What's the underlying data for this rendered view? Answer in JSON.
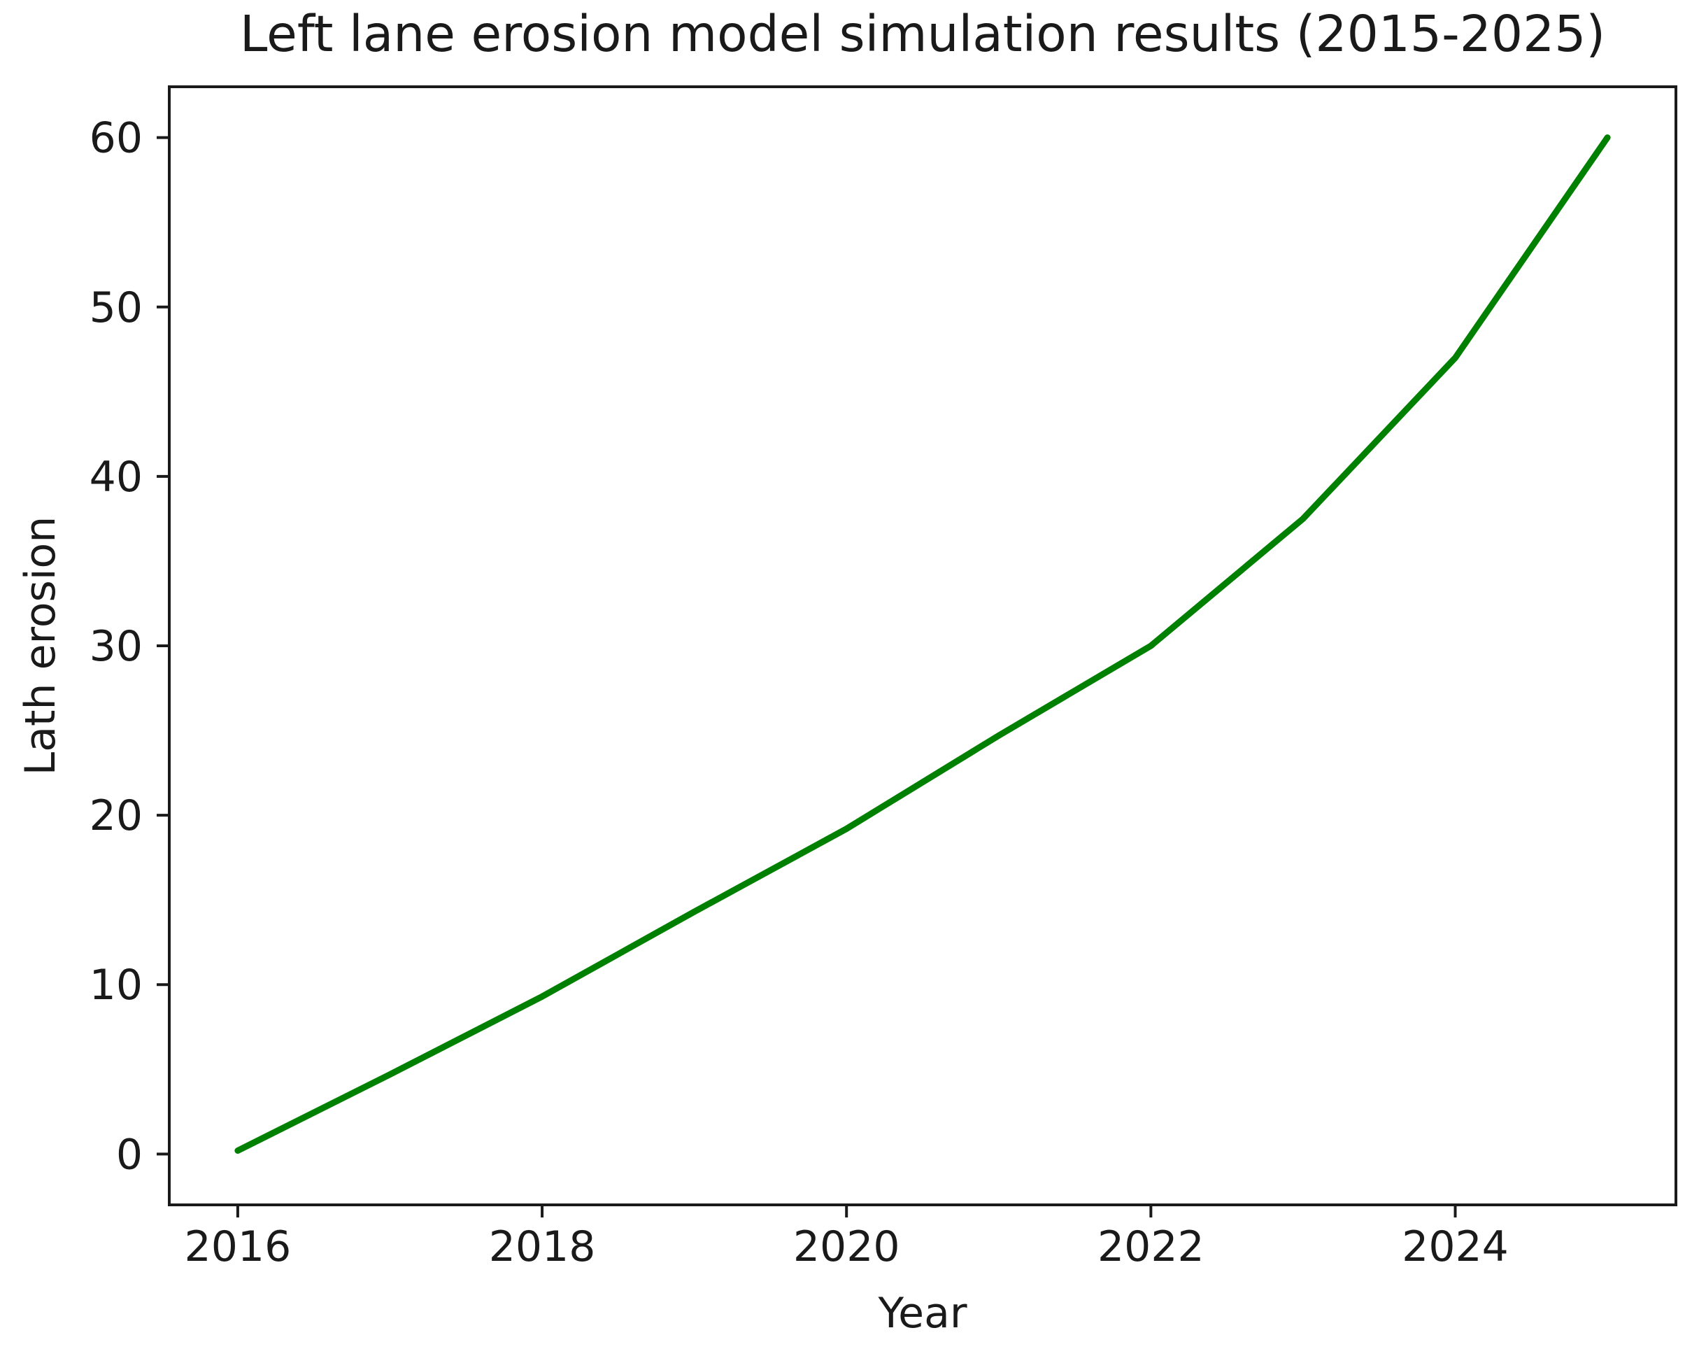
{
  "title": "Left lane erosion model simulation results (2015-2025)",
  "colors": {
    "line": "#008000",
    "axis": "#1a1a1a",
    "text": "#1a1a1a",
    "background": "#ffffff"
  },
  "chart_data": {
    "type": "line",
    "title": "Left lane erosion model simulation results (2015-2025)",
    "xlabel": "Year",
    "ylabel": "Lath erosion",
    "x": [
      2016,
      2017,
      2018,
      2019,
      2020,
      2021,
      2022,
      2023,
      2024,
      2025
    ],
    "series": [
      {
        "name": "Lath erosion",
        "color": "#008000",
        "values": [
          0.2,
          4.7,
          9.3,
          14.3,
          19.2,
          24.7,
          30.0,
          37.5,
          47.0,
          60.0
        ]
      }
    ],
    "xticks": [
      2016,
      2018,
      2020,
      2022,
      2024
    ],
    "xtick_labels": [
      "2016",
      "2018",
      "2020",
      "2022",
      "2024"
    ],
    "yticks": [
      0,
      10,
      20,
      30,
      40,
      50,
      60
    ],
    "ytick_labels": [
      "0",
      "10",
      "20",
      "30",
      "40",
      "50",
      "60"
    ],
    "xlim": [
      2015.55,
      2025.45
    ],
    "ylim": [
      -3.0,
      63.0
    ],
    "grid": false,
    "legend_position": "none",
    "line_style": "solid",
    "markers": false
  }
}
